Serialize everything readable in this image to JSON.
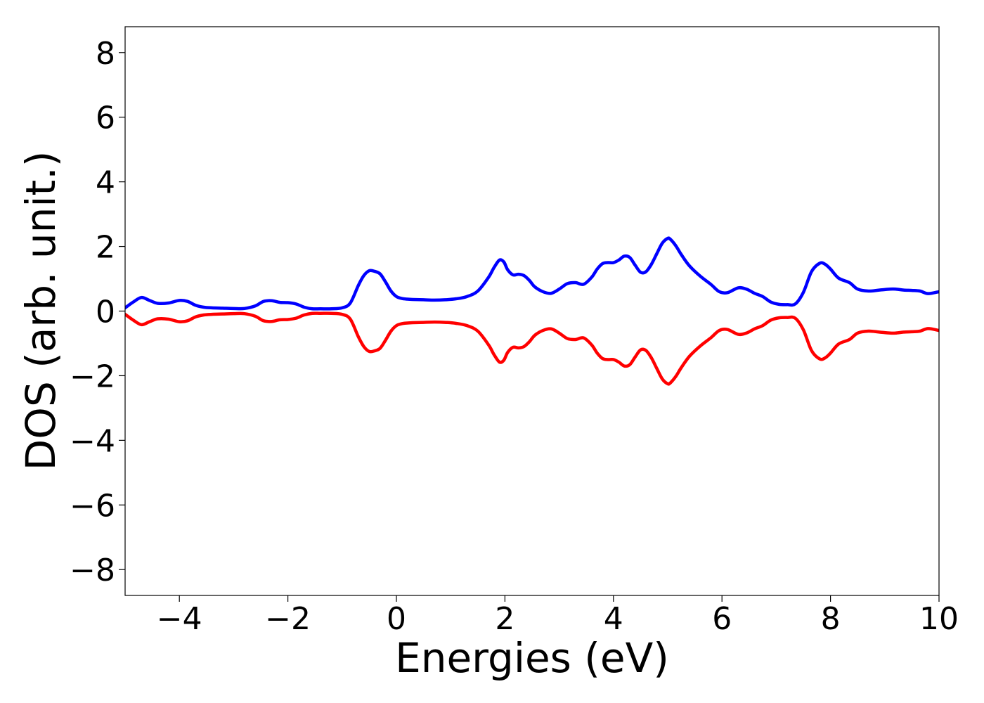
{
  "chart_data": {
    "type": "line",
    "title": "",
    "xlabel": "Energies (eV)",
    "ylabel": "DOS (arb. unit.)",
    "xlim": [
      -5,
      10
    ],
    "ylim": [
      -8.8,
      8.8
    ],
    "xticks": [
      -4,
      -2,
      0,
      2,
      4,
      6,
      8,
      10
    ],
    "yticks": [
      -8,
      -6,
      -4,
      -2,
      0,
      2,
      4,
      6,
      8
    ],
    "grid": false,
    "legend": "none",
    "series": [
      {
        "color": "#0000ff",
        "x": [
          -5.0,
          -4.85,
          -4.7,
          -4.55,
          -4.4,
          -4.2,
          -4.0,
          -3.85,
          -3.7,
          -3.55,
          -3.4,
          -3.2,
          -3.0,
          -2.8,
          -2.6,
          -2.45,
          -2.3,
          -2.15,
          -2.0,
          -1.85,
          -1.7,
          -1.55,
          -1.4,
          -1.2,
          -1.0,
          -0.85,
          -0.7,
          -0.6,
          -0.5,
          -0.4,
          -0.3,
          -0.2,
          -0.1,
          0.0,
          0.1,
          0.2,
          0.3,
          0.5,
          0.7,
          0.9,
          1.1,
          1.3,
          1.5,
          1.7,
          1.8,
          1.9,
          1.98,
          2.05,
          2.15,
          2.25,
          2.35,
          2.45,
          2.55,
          2.7,
          2.85,
          3.0,
          3.15,
          3.3,
          3.45,
          3.6,
          3.7,
          3.8,
          3.9,
          4.0,
          4.1,
          4.2,
          4.3,
          4.4,
          4.5,
          4.6,
          4.7,
          4.8,
          4.9,
          5.0,
          5.05,
          5.15,
          5.25,
          5.4,
          5.6,
          5.8,
          5.95,
          6.1,
          6.3,
          6.45,
          6.6,
          6.75,
          6.9,
          7.05,
          7.2,
          7.35,
          7.5,
          7.65,
          7.8,
          7.9,
          8.0,
          8.15,
          8.35,
          8.5,
          8.7,
          8.9,
          9.1,
          9.2,
          9.35,
          9.5,
          9.65,
          9.8,
          10.0
        ],
        "y": [
          0.1,
          0.28,
          0.42,
          0.33,
          0.24,
          0.25,
          0.33,
          0.3,
          0.18,
          0.12,
          0.1,
          0.09,
          0.08,
          0.08,
          0.16,
          0.3,
          0.32,
          0.27,
          0.26,
          0.22,
          0.12,
          0.07,
          0.07,
          0.07,
          0.1,
          0.25,
          0.8,
          1.1,
          1.25,
          1.23,
          1.15,
          0.9,
          0.62,
          0.45,
          0.39,
          0.37,
          0.36,
          0.35,
          0.34,
          0.35,
          0.38,
          0.45,
          0.62,
          1.05,
          1.35,
          1.58,
          1.52,
          1.28,
          1.12,
          1.14,
          1.1,
          0.95,
          0.75,
          0.6,
          0.55,
          0.68,
          0.85,
          0.88,
          0.83,
          1.05,
          1.3,
          1.47,
          1.5,
          1.5,
          1.58,
          1.7,
          1.66,
          1.42,
          1.2,
          1.22,
          1.45,
          1.78,
          2.1,
          2.25,
          2.22,
          2.02,
          1.75,
          1.4,
          1.08,
          0.82,
          0.6,
          0.57,
          0.72,
          0.68,
          0.55,
          0.45,
          0.28,
          0.21,
          0.2,
          0.22,
          0.58,
          1.22,
          1.48,
          1.45,
          1.3,
          1.02,
          0.88,
          0.68,
          0.62,
          0.65,
          0.68,
          0.68,
          0.65,
          0.64,
          0.62,
          0.54,
          0.6
        ]
      },
      {
        "color": "#ff0000",
        "x": [
          -5.0,
          -4.85,
          -4.7,
          -4.55,
          -4.4,
          -4.2,
          -4.0,
          -3.85,
          -3.7,
          -3.55,
          -3.4,
          -3.2,
          -3.0,
          -2.8,
          -2.6,
          -2.45,
          -2.3,
          -2.15,
          -2.0,
          -1.85,
          -1.7,
          -1.55,
          -1.4,
          -1.2,
          -1.0,
          -0.85,
          -0.7,
          -0.6,
          -0.5,
          -0.4,
          -0.3,
          -0.2,
          -0.1,
          0.0,
          0.1,
          0.2,
          0.3,
          0.5,
          0.7,
          0.9,
          1.1,
          1.3,
          1.5,
          1.7,
          1.8,
          1.9,
          1.98,
          2.05,
          2.15,
          2.25,
          2.35,
          2.45,
          2.55,
          2.7,
          2.85,
          3.0,
          3.15,
          3.3,
          3.45,
          3.6,
          3.7,
          3.8,
          3.9,
          4.0,
          4.1,
          4.2,
          4.3,
          4.4,
          4.5,
          4.6,
          4.7,
          4.8,
          4.9,
          5.0,
          5.05,
          5.15,
          5.25,
          5.4,
          5.6,
          5.8,
          5.95,
          6.1,
          6.3,
          6.45,
          6.6,
          6.75,
          6.9,
          7.05,
          7.2,
          7.35,
          7.5,
          7.65,
          7.8,
          7.9,
          8.0,
          8.15,
          8.35,
          8.5,
          8.7,
          8.9,
          9.1,
          9.2,
          9.35,
          9.5,
          9.65,
          9.8,
          10.0
        ],
        "y": [
          -0.1,
          -0.28,
          -0.42,
          -0.33,
          -0.24,
          -0.25,
          -0.33,
          -0.3,
          -0.18,
          -0.12,
          -0.1,
          -0.09,
          -0.08,
          -0.08,
          -0.16,
          -0.3,
          -0.32,
          -0.27,
          -0.26,
          -0.22,
          -0.12,
          -0.07,
          -0.07,
          -0.07,
          -0.1,
          -0.25,
          -0.8,
          -1.1,
          -1.25,
          -1.23,
          -1.15,
          -0.9,
          -0.62,
          -0.45,
          -0.39,
          -0.37,
          -0.36,
          -0.35,
          -0.34,
          -0.35,
          -0.38,
          -0.45,
          -0.62,
          -1.05,
          -1.35,
          -1.58,
          -1.52,
          -1.28,
          -1.12,
          -1.14,
          -1.1,
          -0.95,
          -0.75,
          -0.6,
          -0.55,
          -0.68,
          -0.85,
          -0.88,
          -0.83,
          -1.05,
          -1.3,
          -1.47,
          -1.5,
          -1.5,
          -1.58,
          -1.7,
          -1.66,
          -1.42,
          -1.2,
          -1.22,
          -1.45,
          -1.78,
          -2.1,
          -2.25,
          -2.22,
          -2.02,
          -1.75,
          -1.4,
          -1.08,
          -0.82,
          -0.6,
          -0.57,
          -0.72,
          -0.68,
          -0.55,
          -0.45,
          -0.28,
          -0.21,
          -0.2,
          -0.22,
          -0.58,
          -1.22,
          -1.48,
          -1.45,
          -1.3,
          -1.02,
          -0.88,
          -0.68,
          -0.62,
          -0.65,
          -0.68,
          -0.68,
          -0.65,
          -0.64,
          -0.62,
          -0.54,
          -0.6
        ]
      }
    ]
  }
}
